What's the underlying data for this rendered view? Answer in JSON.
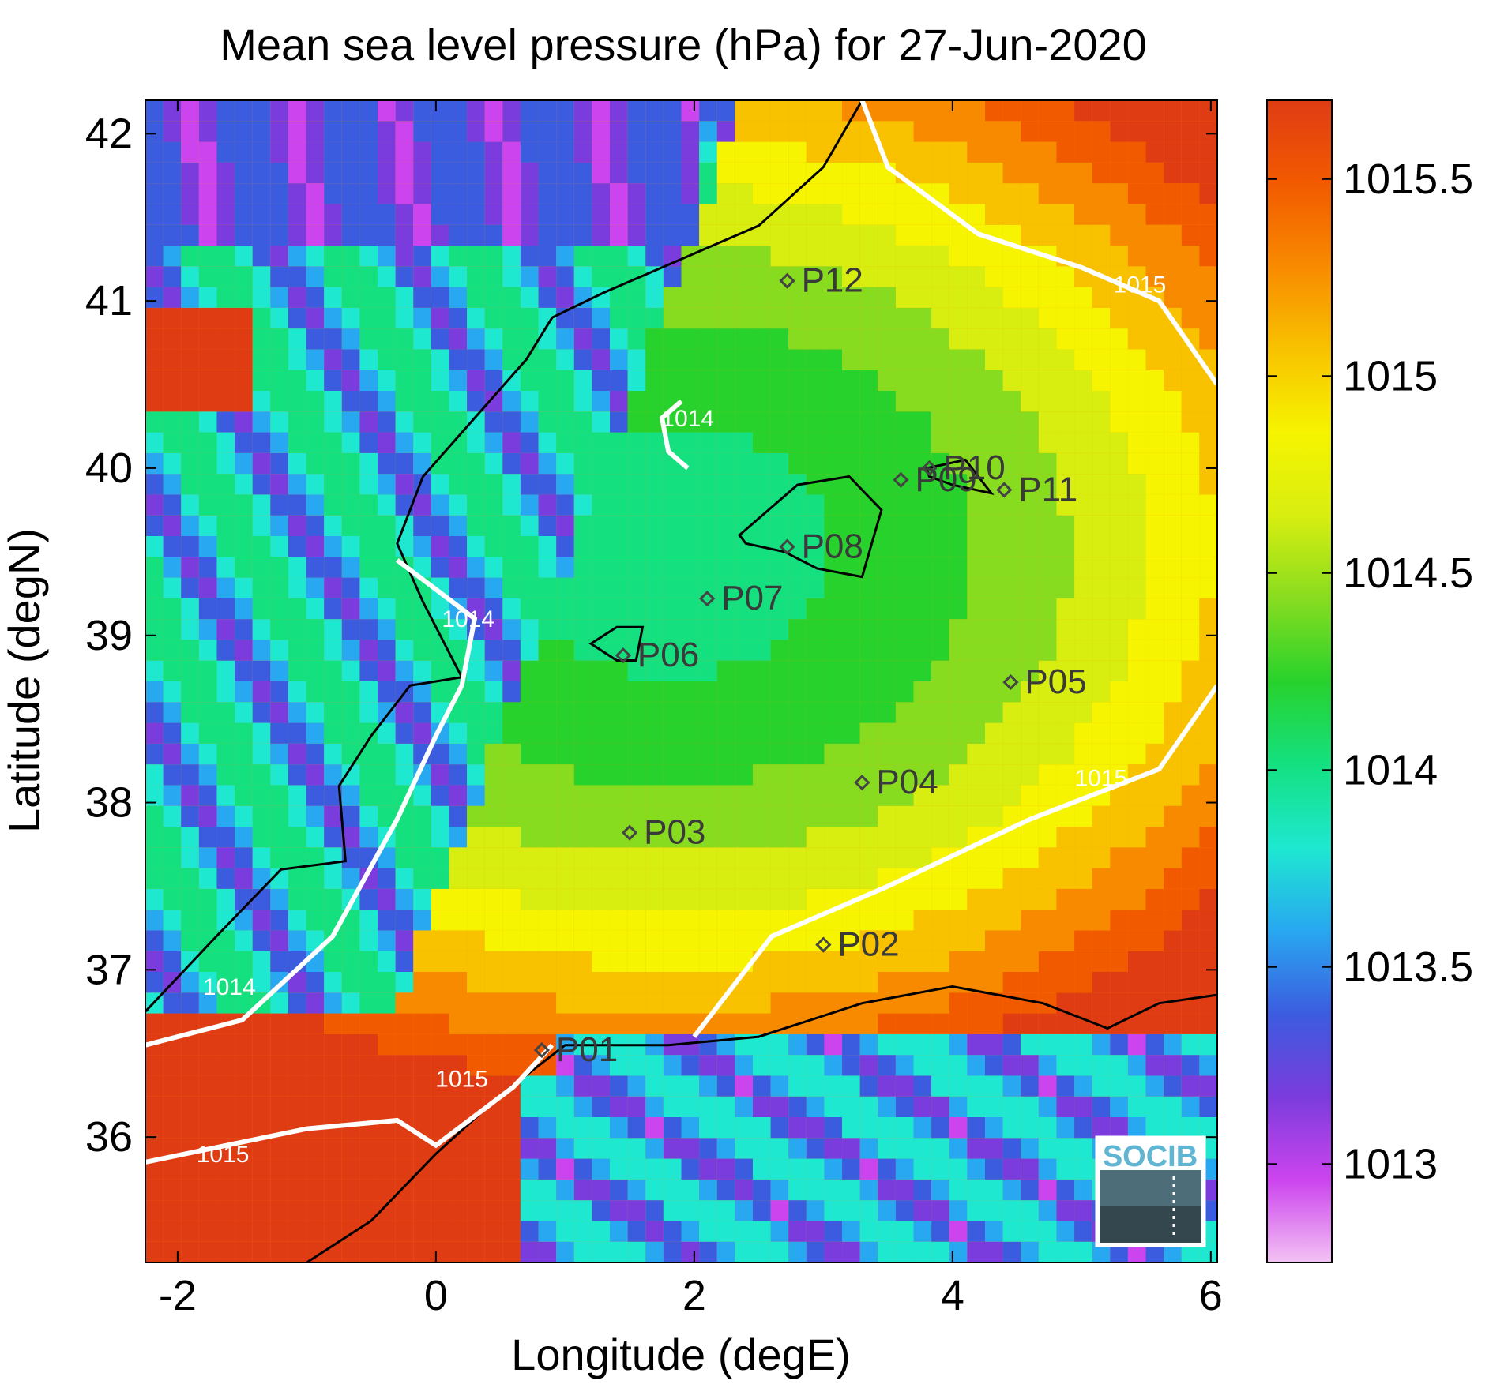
{
  "chart_data": {
    "type": "heatmap",
    "title": "Mean sea level pressure (hPa) for 27-Jun-2020",
    "xlabel": "Longitude (degE)",
    "ylabel": "Latitude (degN)",
    "xlim": [
      -2.25,
      6.05
    ],
    "ylim": [
      35.25,
      42.2
    ],
    "xticks": [
      -2,
      0,
      2,
      4,
      6
    ],
    "xtick_labels": [
      "-2",
      "0",
      "2",
      "4",
      "6"
    ],
    "yticks": [
      36,
      37,
      38,
      39,
      40,
      41,
      42
    ],
    "ytick_labels": [
      "36",
      "37",
      "38",
      "39",
      "40",
      "41",
      "42"
    ],
    "colorbar": {
      "range": [
        1012.75,
        1015.7
      ],
      "ticks": [
        1013,
        1013.5,
        1014,
        1014.5,
        1015,
        1015.5
      ],
      "tick_labels": [
        "1013",
        "1013.5",
        "1014",
        "1014.5",
        "1015",
        "1015.5"
      ],
      "colormap": [
        "#f3c2f3",
        "#cc44ee",
        "#7a3cdc",
        "#3c5ce0",
        "#28a8f0",
        "#1ee8d0",
        "#14e080",
        "#28d22c",
        "#88dc20",
        "#d8ee10",
        "#f6f400",
        "#f8c200",
        "#f88a00",
        "#f25a00",
        "#e03c14"
      ]
    },
    "contour_labels": [
      {
        "text": "1014",
        "lon": 1.95,
        "lat": 40.25
      },
      {
        "text": "1014",
        "lon": 0.25,
        "lat": 39.05
      },
      {
        "text": "1014",
        "lon": -1.6,
        "lat": 36.85
      },
      {
        "text": "1015",
        "lon": 5.45,
        "lat": 41.05
      },
      {
        "text": "1015",
        "lon": 5.15,
        "lat": 38.1
      },
      {
        "text": "1015",
        "lon": 0.2,
        "lat": 36.3
      },
      {
        "text": "1015",
        "lon": -1.65,
        "lat": 35.85
      }
    ],
    "stations": [
      {
        "name": "P01",
        "lon": 0.82,
        "lat": 36.52
      },
      {
        "name": "P02",
        "lon": 3.0,
        "lat": 37.15
      },
      {
        "name": "P03",
        "lon": 1.5,
        "lat": 37.82
      },
      {
        "name": "P04",
        "lon": 3.3,
        "lat": 38.12
      },
      {
        "name": "P05",
        "lon": 4.45,
        "lat": 38.72
      },
      {
        "name": "P06",
        "lon": 1.45,
        "lat": 38.88
      },
      {
        "name": "P07",
        "lon": 2.1,
        "lat": 39.22
      },
      {
        "name": "P08",
        "lon": 2.72,
        "lat": 39.53
      },
      {
        "name": "P09",
        "lon": 3.6,
        "lat": 39.93
      },
      {
        "name": "P10",
        "lon": 3.82,
        "lat": 40.0
      },
      {
        "name": "P11",
        "lon": 4.4,
        "lat": 39.87
      },
      {
        "name": "P12",
        "lon": 2.72,
        "lat": 41.12
      }
    ],
    "logo": "SOCIB",
    "grid": false
  }
}
